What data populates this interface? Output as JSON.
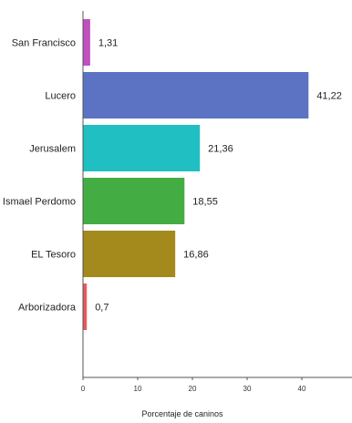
{
  "chart_data": {
    "type": "bar",
    "orientation": "horizontal",
    "categories": [
      "San Francisco",
      "Lucero",
      "Jerusalem",
      "Ismael Perdomo",
      "EL Tesoro",
      "Arborizadora"
    ],
    "values": [
      1.31,
      41.22,
      21.36,
      18.55,
      16.86,
      0.7
    ],
    "value_labels": [
      "1,31",
      "41,22",
      "21,36",
      "18,55",
      "16,86",
      "0,7"
    ],
    "colors": [
      "#c04fbf",
      "#5b73c2",
      "#1fbfc2",
      "#43ad43",
      "#a4891c",
      "#e85a5a"
    ],
    "xlabel": "Porcentaje de caninos",
    "ylabel": "",
    "xlim": [
      0,
      50
    ],
    "xticks": [
      0,
      10,
      20,
      30,
      40
    ],
    "grid": false,
    "legend": "none"
  }
}
